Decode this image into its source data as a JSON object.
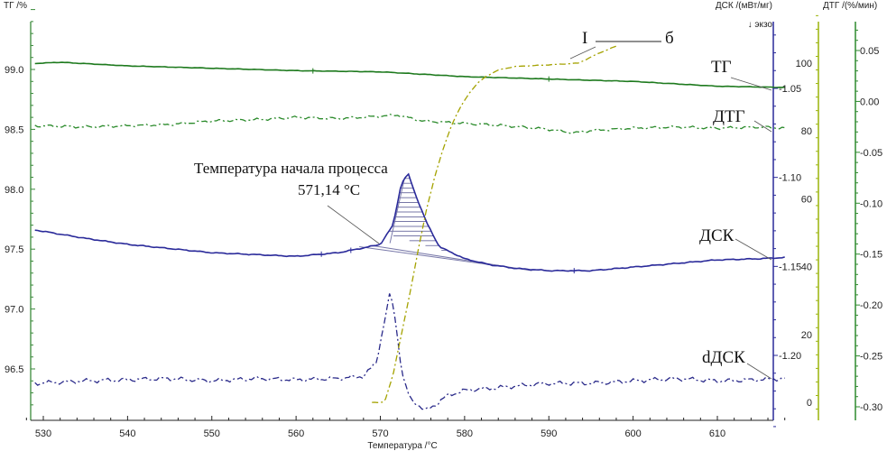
{
  "chart_data": {
    "type": "line",
    "xlabel": "Температура /°C",
    "xlim": [
      529,
      619
    ],
    "xticks": [
      530,
      540,
      550,
      560,
      570,
      580,
      590,
      600,
      610
    ],
    "axes": {
      "tg": {
        "label": "ТГ /%",
        "ylim": [
          96.1,
          99.6
        ],
        "ticks": [
          96.5,
          97.0,
          97.5,
          98.0,
          98.5,
          99.0
        ]
      },
      "dsc": {
        "label": "ДСК /(мВт/мг)",
        "ylim": [
          -1.243,
          -1.013
        ],
        "ticks": [
          -1.05,
          -1.1,
          -1.15,
          -1.2
        ],
        "direction": "↓ экзо"
      },
      "third": {
        "ylim": [
          -4,
          118
        ],
        "ticks": [
          0,
          20,
          40,
          60,
          80,
          100
        ]
      },
      "dtg": {
        "label": "ДТГ /(%/мин)",
        "ylim": [
          -0.31,
          0.08
        ],
        "ticks": [
          0.05,
          0.0,
          -0.05,
          -0.1,
          -0.15,
          -0.2,
          -0.25,
          -0.3
        ]
      }
    },
    "series": [
      {
        "name": "ТГ",
        "axis": "tg",
        "color": "#1e7a1e",
        "style": "solid",
        "x": [
          529,
          532,
          540,
          550,
          560,
          570,
          575,
          580,
          590,
          600,
          610,
          618
        ],
        "y": [
          99.05,
          99.06,
          99.03,
          99.01,
          98.99,
          98.98,
          98.96,
          98.94,
          98.92,
          98.9,
          98.86,
          98.85
        ]
      },
      {
        "name": "ДТГ",
        "axis": "tg",
        "color": "#2a8a2a",
        "style": "dashdot",
        "x": [
          529,
          535,
          540,
          545,
          550,
          555,
          560,
          565,
          570,
          572,
          575,
          580,
          585,
          590,
          593,
          595,
          600,
          605,
          610,
          615,
          618
        ],
        "y": [
          98.53,
          98.52,
          98.53,
          98.54,
          98.57,
          98.58,
          98.6,
          98.59,
          98.61,
          98.62,
          98.57,
          98.55,
          98.53,
          98.5,
          98.47,
          98.49,
          98.51,
          98.52,
          98.51,
          98.52,
          98.51
        ]
      },
      {
        "name": "ДСК",
        "axis": "tg",
        "color": "#2a2a9a",
        "style": "solid",
        "x": [
          529,
          535,
          540,
          550,
          560,
          565,
          568,
          570,
          571.5,
          572.5,
          573.3,
          574.2,
          575.5,
          577,
          580,
          583,
          586,
          590,
          595,
          600,
          605,
          610,
          615,
          618
        ],
        "y": [
          97.66,
          97.59,
          97.54,
          97.47,
          97.44,
          97.47,
          97.51,
          97.54,
          97.7,
          98.05,
          98.13,
          97.95,
          97.72,
          97.52,
          97.42,
          97.37,
          97.34,
          97.32,
          97.32,
          97.35,
          97.38,
          97.41,
          97.42,
          97.43
        ]
      },
      {
        "name": "dДСК",
        "axis": "tg",
        "color": "#2a2a8a",
        "style": "dashdot",
        "x": [
          529,
          535,
          540,
          545,
          550,
          555,
          560,
          565,
          568,
          569.5,
          570.5,
          571.2,
          571.8,
          572.6,
          573.5,
          574.5,
          575.3,
          576.5,
          578,
          580,
          585,
          590,
          595,
          600,
          605,
          610,
          615,
          618
        ],
        "y": [
          96.38,
          96.4,
          96.41,
          96.42,
          96.4,
          96.42,
          96.41,
          96.42,
          96.44,
          96.55,
          96.9,
          97.15,
          96.9,
          96.45,
          96.25,
          96.2,
          96.15,
          96.2,
          96.28,
          96.32,
          96.35,
          96.38,
          96.38,
          96.4,
          96.42,
          96.4,
          96.41,
          96.42
        ]
      },
      {
        "name": "",
        "axis": "third",
        "color": "#a4a200",
        "style": "dashdot",
        "x": [
          569,
          570.5,
          571.5,
          572.5,
          573.5,
          574.5,
          575.5,
          576.5,
          577.5,
          578.5,
          579.5,
          580.5,
          581.5,
          582.5,
          584,
          586,
          590,
          593.5,
          596,
          598
        ],
        "y": [
          0,
          0,
          8,
          20,
          32,
          45,
          57,
          67,
          75,
          82,
          87,
          91,
          94,
          96,
          98,
          99,
          99.5,
          100,
          103,
          105
        ]
      }
    ],
    "annotations": [
      {
        "text": "ТГ"
      },
      {
        "text": "ДТГ"
      },
      {
        "text": "ДСК"
      },
      {
        "text": "dДСК"
      },
      {
        "text": "Температура начала процесса"
      },
      {
        "text": "571,14 °C"
      },
      {
        "text": "I"
      },
      {
        "text": "б"
      }
    ]
  }
}
